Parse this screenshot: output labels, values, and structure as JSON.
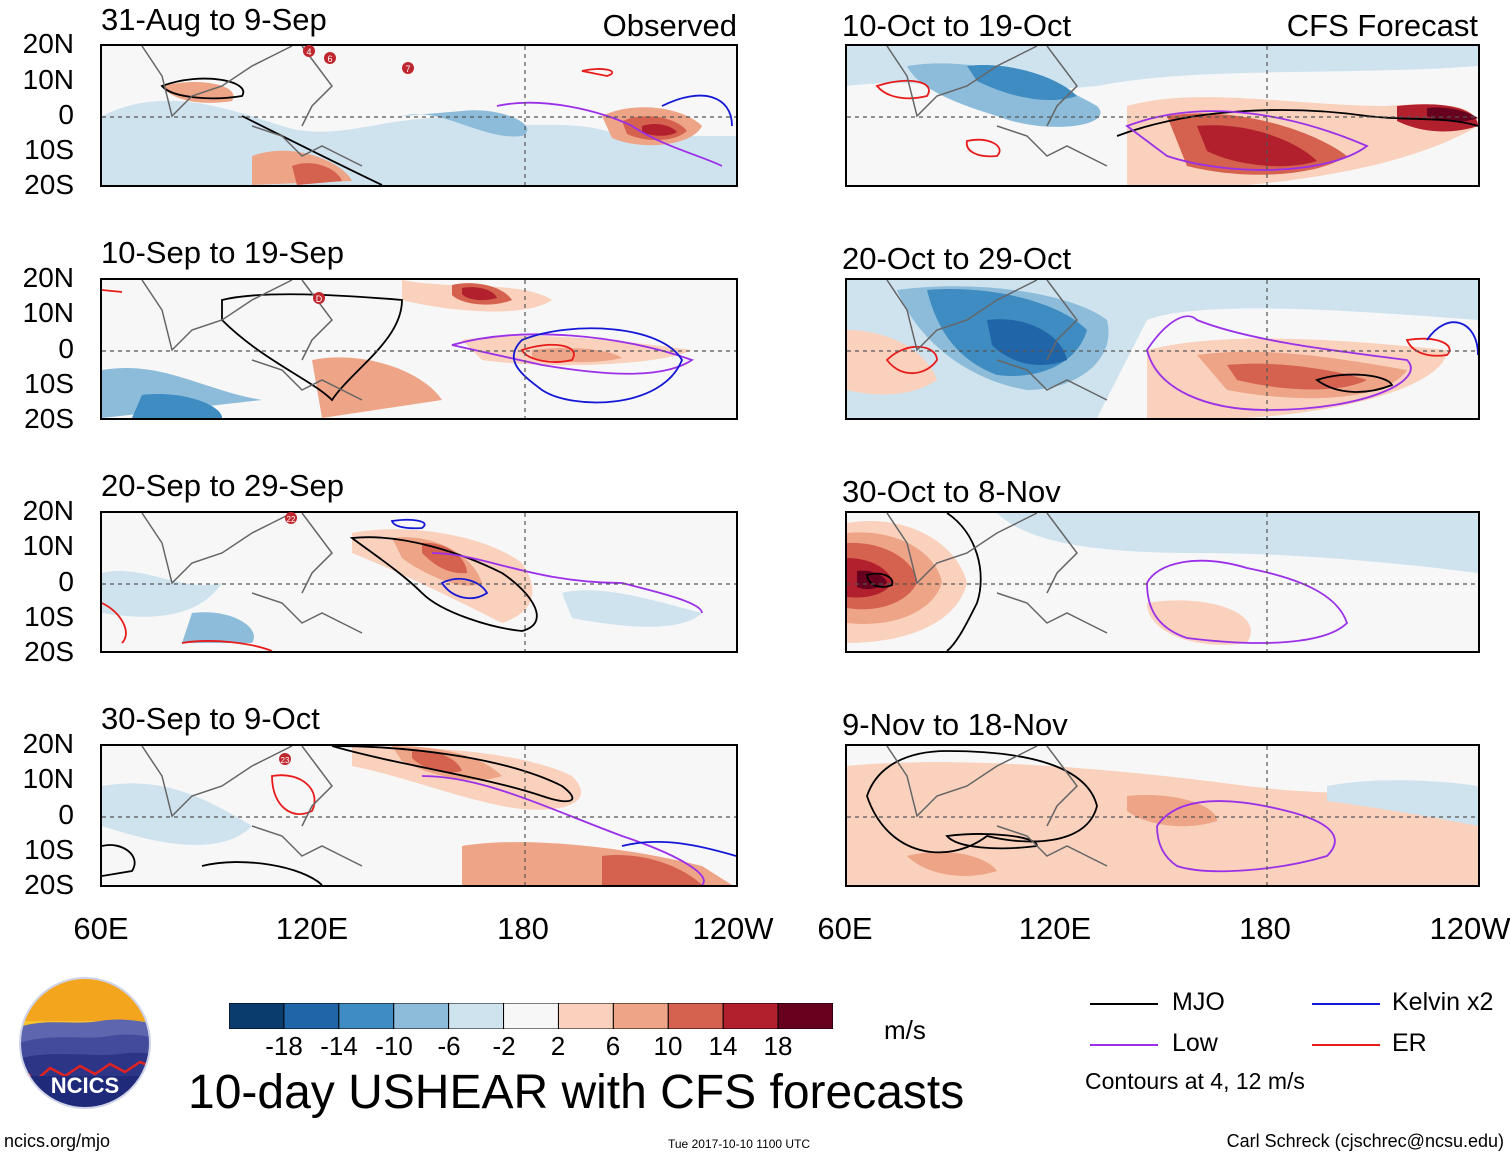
{
  "header": {
    "left_title": "Observed",
    "right_title": "CFS Forecast"
  },
  "panels": [
    {
      "period": "31-Aug to 9-Sep"
    },
    {
      "period": "10-Sep to 19-Sep"
    },
    {
      "period": "20-Sep to 29-Sep"
    },
    {
      "period": "30-Sep to 9-Oct"
    },
    {
      "period": "10-Oct to 19-Oct"
    },
    {
      "period": "20-Oct to 29-Oct"
    },
    {
      "period": "30-Oct to 8-Nov"
    },
    {
      "period": "9-Nov to 18-Nov"
    }
  ],
  "axes": {
    "lat_labels": [
      "20N",
      "10N",
      "0",
      "10S",
      "20S"
    ],
    "lon_labels": [
      "60E",
      "120E",
      "180",
      "120W"
    ]
  },
  "storm_markers": [
    "4",
    "6",
    "7",
    "D",
    "22",
    "23"
  ],
  "colorbar": {
    "tick_labels": [
      "-18",
      "-14",
      "-10",
      "-6",
      "-2",
      "2",
      "6",
      "10",
      "14",
      "18"
    ],
    "units": "m/s",
    "colors": [
      "#0b3c6e",
      "#1f65a8",
      "#3f8cc2",
      "#8cbcda",
      "#cfe3ef",
      "#f7f7f7",
      "#f9d1bc",
      "#eea486",
      "#d5614f",
      "#b21f2d",
      "#67001f"
    ]
  },
  "legend": {
    "items": [
      {
        "label": "MJO",
        "color": "#000000"
      },
      {
        "label": "Kelvin x2",
        "color": "#1418d6"
      },
      {
        "label": "Low",
        "color": "#9b30e8"
      },
      {
        "label": "ER",
        "color": "#e81b1b"
      }
    ],
    "contours_note": "Contours at 4, 12 m/s"
  },
  "main_title": "10-day USHEAR with CFS forecasts",
  "logo_text": "NCICS",
  "footer": {
    "url": "ncics.org/mjo",
    "timestamp": "Tue 2017-10-10 1100 UTC",
    "author": "Carl Schreck (cjschrec@ncsu.edu)"
  }
}
